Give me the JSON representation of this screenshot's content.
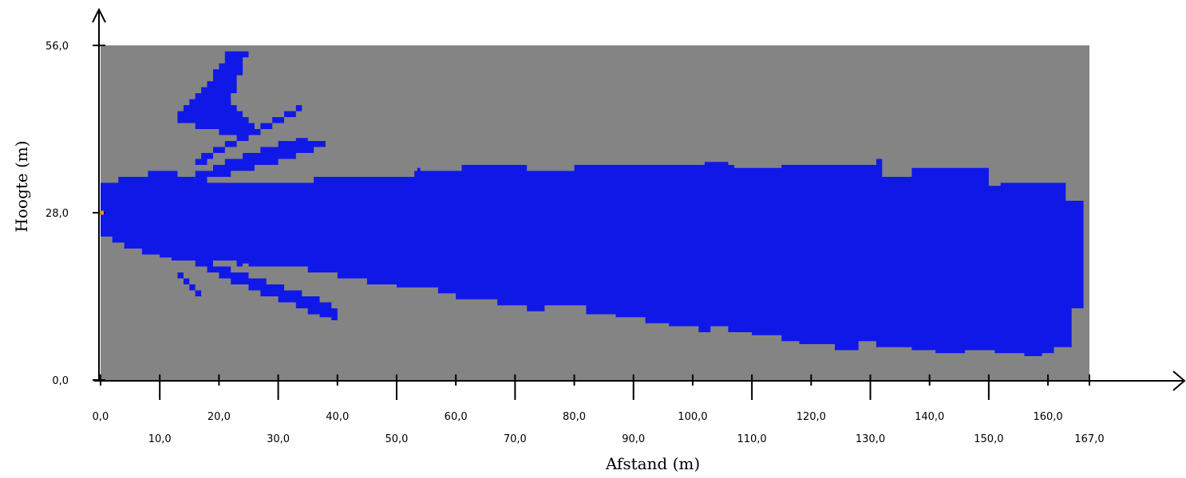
{
  "chart_data": {
    "type": "heatmap",
    "title": "",
    "xlabel": "Afstand (m)",
    "ylabel": "Hoogte (m)",
    "xlim": [
      0,
      167
    ],
    "ylim": [
      0,
      56
    ],
    "x_ticks_upper": [
      "0,0",
      "20,0",
      "40,0",
      "60,0",
      "80,0",
      "100,0",
      "120,0",
      "140,0",
      "160,0"
    ],
    "x_ticks_lower": [
      "10,0",
      "30,0",
      "50,0",
      "70,0",
      "90,0",
      "110,0",
      "130,0",
      "150,0",
      "167,0"
    ],
    "y_ticks": [
      "0,0",
      "28,0",
      "56,0"
    ],
    "background_color": "#848484",
    "region_color": "#1018e8",
    "marker_color": "#e89020",
    "source_marker": [
      0,
      28
    ],
    "main_region": {
      "top": [
        [
          0,
          33
        ],
        [
          3,
          33
        ],
        [
          3,
          34
        ],
        [
          8,
          34
        ],
        [
          8,
          35
        ],
        [
          13,
          35
        ],
        [
          13,
          34
        ],
        [
          16,
          34
        ],
        [
          16,
          33
        ],
        [
          36,
          33
        ],
        [
          36,
          34
        ],
        [
          53,
          34
        ],
        [
          53,
          35
        ],
        [
          53.5,
          35
        ],
        [
          53.5,
          35.5
        ],
        [
          54,
          35.5
        ],
        [
          54,
          35
        ],
        [
          61,
          35
        ],
        [
          61,
          36
        ],
        [
          72,
          36
        ],
        [
          72,
          35
        ],
        [
          80,
          35
        ],
        [
          80,
          36
        ],
        [
          102,
          36
        ],
        [
          102,
          36.5
        ],
        [
          106,
          36.5
        ],
        [
          106,
          36
        ],
        [
          107,
          36
        ],
        [
          107,
          35.5
        ],
        [
          115,
          35.5
        ],
        [
          115,
          36
        ],
        [
          131,
          36
        ],
        [
          131,
          37
        ],
        [
          132,
          37
        ],
        [
          132,
          34
        ],
        [
          137,
          34
        ],
        [
          137,
          35.5
        ],
        [
          150,
          35.5
        ],
        [
          150,
          32.5
        ],
        [
          152,
          32.5
        ],
        [
          152,
          33
        ],
        [
          163,
          33
        ],
        [
          163,
          30
        ],
        [
          166,
          30
        ]
      ],
      "bottom": [
        [
          0,
          24
        ],
        [
          2,
          24
        ],
        [
          2,
          23
        ],
        [
          4,
          23
        ],
        [
          4,
          22
        ],
        [
          7,
          22
        ],
        [
          7,
          21
        ],
        [
          10,
          21
        ],
        [
          10,
          20.5
        ],
        [
          12,
          20.5
        ],
        [
          12,
          20
        ],
        [
          23,
          20
        ],
        [
          23,
          19.5
        ],
        [
          26,
          19.5
        ],
        [
          26,
          19
        ],
        [
          35,
          19
        ],
        [
          35,
          18
        ],
        [
          40,
          18
        ],
        [
          40,
          17
        ],
        [
          45,
          17
        ],
        [
          45,
          16
        ],
        [
          50,
          16
        ],
        [
          50,
          15.5
        ],
        [
          57,
          15.5
        ],
        [
          57,
          14.5
        ],
        [
          60,
          14.5
        ],
        [
          60,
          13.5
        ],
        [
          67,
          13.5
        ],
        [
          67,
          12.5
        ],
        [
          72,
          12.5
        ],
        [
          72,
          11.5
        ],
        [
          75,
          11.5
        ],
        [
          75,
          12.5
        ],
        [
          82,
          12.5
        ],
        [
          82,
          11
        ],
        [
          87,
          11
        ],
        [
          87,
          10.5
        ],
        [
          92,
          10.5
        ],
        [
          92,
          9.5
        ],
        [
          96,
          9.5
        ],
        [
          96,
          9
        ],
        [
          101,
          9
        ],
        [
          101,
          8
        ],
        [
          103,
          8
        ],
        [
          103,
          9
        ],
        [
          106,
          9
        ],
        [
          106,
          8
        ],
        [
          110,
          8
        ],
        [
          110,
          7.5
        ],
        [
          115,
          7.5
        ],
        [
          115,
          6.5
        ],
        [
          118,
          6.5
        ],
        [
          118,
          6
        ],
        [
          124,
          6
        ],
        [
          124,
          5
        ],
        [
          128,
          5
        ],
        [
          128,
          6.5
        ],
        [
          131,
          6.5
        ],
        [
          131,
          5.5
        ],
        [
          137,
          5.5
        ],
        [
          137,
          5
        ],
        [
          141,
          5
        ],
        [
          141,
          4.5
        ],
        [
          146,
          4.5
        ],
        [
          146,
          5
        ],
        [
          151,
          5
        ],
        [
          151,
          4.5
        ],
        [
          156,
          4.5
        ],
        [
          156,
          4
        ],
        [
          159,
          4
        ],
        [
          159,
          4.5
        ],
        [
          161,
          4.5
        ],
        [
          161,
          5.5
        ],
        [
          164,
          5.5
        ],
        [
          164,
          12
        ],
        [
          166,
          12
        ]
      ]
    },
    "streaks": [
      [
        [
          13,
          43
        ],
        [
          13,
          45
        ],
        [
          14,
          45
        ],
        [
          14,
          46
        ],
        [
          15,
          46
        ],
        [
          15,
          47
        ],
        [
          16,
          47
        ],
        [
          16,
          48
        ],
        [
          17,
          48
        ],
        [
          17,
          49
        ],
        [
          18,
          49
        ],
        [
          18,
          50
        ],
        [
          19,
          50
        ],
        [
          19,
          49
        ],
        [
          20,
          49
        ],
        [
          20,
          48
        ],
        [
          21,
          48
        ],
        [
          21,
          47
        ],
        [
          22,
          47
        ],
        [
          22,
          46
        ],
        [
          23,
          46
        ],
        [
          23,
          45
        ],
        [
          24,
          45
        ],
        [
          24,
          44
        ],
        [
          25,
          44
        ],
        [
          25,
          43
        ],
        [
          26,
          43
        ],
        [
          26,
          42
        ],
        [
          27,
          42
        ],
        [
          27,
          41
        ],
        [
          20,
          41
        ],
        [
          20,
          42
        ],
        [
          18,
          42
        ],
        [
          18,
          43
        ]
      ],
      [
        [
          16,
          37
        ],
        [
          17,
          37
        ],
        [
          17,
          38
        ],
        [
          19,
          38
        ],
        [
          19,
          39
        ],
        [
          21,
          39
        ],
        [
          21,
          40
        ],
        [
          23,
          40
        ],
        [
          23,
          41
        ],
        [
          25,
          41
        ],
        [
          25,
          42
        ],
        [
          27,
          42
        ],
        [
          27,
          43
        ],
        [
          29,
          43
        ],
        [
          29,
          44
        ],
        [
          31,
          44
        ],
        [
          31,
          45
        ],
        [
          33,
          45
        ],
        [
          33,
          46
        ],
        [
          34,
          46
        ],
        [
          34,
          45
        ],
        [
          33,
          45
        ],
        [
          33,
          44
        ],
        [
          31,
          44
        ],
        [
          31,
          43
        ],
        [
          29,
          43
        ],
        [
          29,
          42
        ],
        [
          27,
          42
        ],
        [
          27,
          41
        ],
        [
          25,
          41
        ],
        [
          25,
          40
        ],
        [
          23,
          40
        ],
        [
          23,
          39
        ],
        [
          21,
          39
        ],
        [
          21,
          38
        ],
        [
          19,
          38
        ],
        [
          19,
          37
        ],
        [
          17,
          37
        ],
        [
          17,
          36
        ],
        [
          16,
          36
        ]
      ],
      [
        [
          16,
          35
        ],
        [
          19,
          35
        ],
        [
          19,
          36
        ],
        [
          21,
          36
        ],
        [
          21,
          37
        ],
        [
          24,
          37
        ],
        [
          24,
          38
        ],
        [
          27,
          38
        ],
        [
          27,
          39
        ],
        [
          30,
          39
        ],
        [
          30,
          40
        ],
        [
          33,
          40
        ],
        [
          33,
          40.5
        ],
        [
          35,
          40.5
        ],
        [
          35,
          40
        ],
        [
          38,
          40
        ],
        [
          38,
          39
        ],
        [
          36,
          39
        ],
        [
          36,
          38
        ],
        [
          33,
          38
        ],
        [
          33,
          37
        ],
        [
          30,
          37
        ],
        [
          30,
          36
        ],
        [
          26,
          36
        ],
        [
          26,
          35
        ],
        [
          22,
          35
        ],
        [
          22,
          34
        ],
        [
          18,
          34
        ],
        [
          18,
          33
        ],
        [
          16,
          33
        ]
      ],
      [
        [
          17,
          36
        ],
        [
          18,
          36
        ],
        [
          18,
          37
        ],
        [
          17,
          37
        ]
      ],
      [
        [
          16,
          43
        ],
        [
          17,
          43
        ],
        [
          17,
          45
        ],
        [
          18,
          45
        ],
        [
          18,
          50
        ],
        [
          19,
          50
        ],
        [
          19,
          52
        ],
        [
          20,
          52
        ],
        [
          20,
          53
        ],
        [
          21,
          53
        ],
        [
          21,
          55
        ],
        [
          25,
          55
        ],
        [
          25,
          54
        ],
        [
          24,
          54
        ],
        [
          24,
          51
        ],
        [
          23,
          51
        ],
        [
          23,
          48
        ],
        [
          22,
          48
        ],
        [
          22,
          46
        ],
        [
          21,
          46
        ],
        [
          21,
          44
        ],
        [
          20,
          44
        ],
        [
          20,
          43
        ],
        [
          19,
          43
        ],
        [
          19,
          42
        ],
        [
          16,
          42
        ]
      ],
      [
        [
          13,
          20
        ],
        [
          16,
          20
        ],
        [
          16,
          19
        ],
        [
          18,
          19
        ],
        [
          18,
          18
        ],
        [
          20,
          18
        ],
        [
          20,
          17
        ],
        [
          22,
          17
        ],
        [
          22,
          16
        ],
        [
          25,
          16
        ],
        [
          25,
          15
        ],
        [
          27,
          15
        ],
        [
          27,
          14
        ],
        [
          30,
          14
        ],
        [
          30,
          13
        ],
        [
          33,
          13
        ],
        [
          33,
          12
        ],
        [
          35,
          12
        ],
        [
          35,
          11
        ],
        [
          37,
          11
        ],
        [
          37,
          10.5
        ],
        [
          39,
          10.5
        ],
        [
          39,
          10
        ],
        [
          40,
          10
        ],
        [
          40,
          12
        ],
        [
          39,
          12
        ],
        [
          39,
          13
        ],
        [
          37,
          13
        ],
        [
          37,
          14
        ],
        [
          34,
          14
        ],
        [
          34,
          15
        ],
        [
          31,
          15
        ],
        [
          31,
          16
        ],
        [
          28,
          16
        ],
        [
          28,
          17
        ],
        [
          25,
          17
        ],
        [
          25,
          18
        ],
        [
          22,
          18
        ],
        [
          22,
          19
        ],
        [
          19,
          19
        ],
        [
          19,
          20
        ],
        [
          15,
          20
        ],
        [
          15,
          21
        ],
        [
          13,
          21
        ]
      ],
      [
        [
          16,
          20
        ],
        [
          17,
          20
        ],
        [
          17,
          19
        ],
        [
          19,
          19
        ],
        [
          19,
          20.5
        ],
        [
          16,
          20.5
        ]
      ],
      [
        [
          13,
          18
        ],
        [
          14,
          18
        ],
        [
          14,
          17
        ],
        [
          15,
          17
        ],
        [
          15,
          16
        ],
        [
          16,
          16
        ],
        [
          16,
          15
        ],
        [
          17,
          15
        ],
        [
          17,
          14
        ],
        [
          16,
          14
        ],
        [
          16,
          15
        ],
        [
          15,
          15
        ],
        [
          15,
          16
        ],
        [
          14,
          16
        ],
        [
          14,
          17
        ],
        [
          13,
          17
        ]
      ],
      [
        [
          23,
          19
        ],
        [
          24,
          19
        ],
        [
          24,
          20
        ],
        [
          23,
          20
        ]
      ],
      [
        [
          25,
          19
        ],
        [
          26,
          19
        ],
        [
          26,
          20
        ],
        [
          25,
          20
        ]
      ]
    ]
  }
}
